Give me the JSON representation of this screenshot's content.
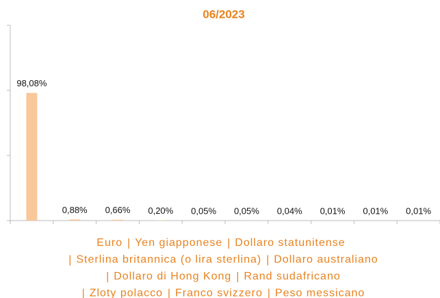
{
  "chart_data": {
    "type": "bar",
    "title": "06/2023",
    "categories": [
      "Euro",
      "Yen giapponese",
      "Dollaro statunitense",
      "Sterlina britannica (o lira sterlina)",
      "Dollaro australiano",
      "Dollaro di Hong Kong",
      "Rand sudafricano",
      "Zloty polacco",
      "Franco svizzero",
      "Peso messicano"
    ],
    "values": [
      98.08,
      0.88,
      0.66,
      0.2,
      0.05,
      0.05,
      0.04,
      0.01,
      0.01,
      0.01
    ],
    "value_labels": [
      "98,08%",
      "0,88%",
      "0,66%",
      "0,20%",
      "0,05%",
      "0,05%",
      "0,04%",
      "0,01%",
      "0,01%",
      "0,01%"
    ],
    "color": "#f8c89a",
    "ylim": [
      0,
      150
    ],
    "yticks": [
      0,
      50,
      100,
      150
    ]
  }
}
